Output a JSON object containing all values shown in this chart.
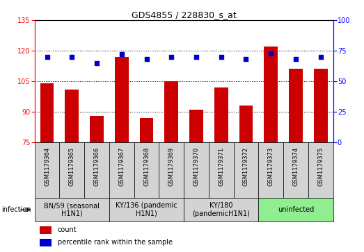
{
  "title": "GDS4855 / 228830_s_at",
  "samples": [
    "GSM1179364",
    "GSM1179365",
    "GSM1179366",
    "GSM1179367",
    "GSM1179368",
    "GSM1179369",
    "GSM1179370",
    "GSM1179371",
    "GSM1179372",
    "GSM1179373",
    "GSM1179374",
    "GSM1179375"
  ],
  "counts": [
    104,
    101,
    88,
    117,
    87,
    105,
    91,
    102,
    93,
    122,
    111,
    111
  ],
  "percentiles": [
    70,
    70,
    65,
    72,
    68,
    70,
    70,
    70,
    68,
    73,
    68,
    70
  ],
  "ylim_left": [
    75,
    135
  ],
  "ylim_right": [
    0,
    100
  ],
  "yticks_left": [
    75,
    90,
    105,
    120,
    135
  ],
  "yticks_right": [
    0,
    25,
    50,
    75,
    100
  ],
  "bar_color": "#cc0000",
  "dot_color": "#0000cc",
  "groups": [
    {
      "label": "BN/59 (seasonal\nH1N1)",
      "start": 0,
      "end": 3,
      "color": "#d3d3d3"
    },
    {
      "label": "KY/136 (pandemic\nH1N1)",
      "start": 3,
      "end": 6,
      "color": "#d3d3d3"
    },
    {
      "label": "KY/180\n(pandemicH1N1)",
      "start": 6,
      "end": 9,
      "color": "#d3d3d3"
    },
    {
      "label": "uninfected",
      "start": 9,
      "end": 12,
      "color": "#90ee90"
    }
  ],
  "infection_label": "infection",
  "legend_count_label": "count",
  "legend_percentile_label": "percentile rank within the sample",
  "bar_bottom": 75,
  "bar_width": 0.55,
  "dot_size": 18,
  "title_fontsize": 9,
  "tick_fontsize": 7,
  "sample_fontsize": 6,
  "group_fontsize": 7,
  "legend_fontsize": 7,
  "infection_fontsize": 7,
  "fig_width": 5.23,
  "fig_height": 3.63,
  "fig_dpi": 100
}
